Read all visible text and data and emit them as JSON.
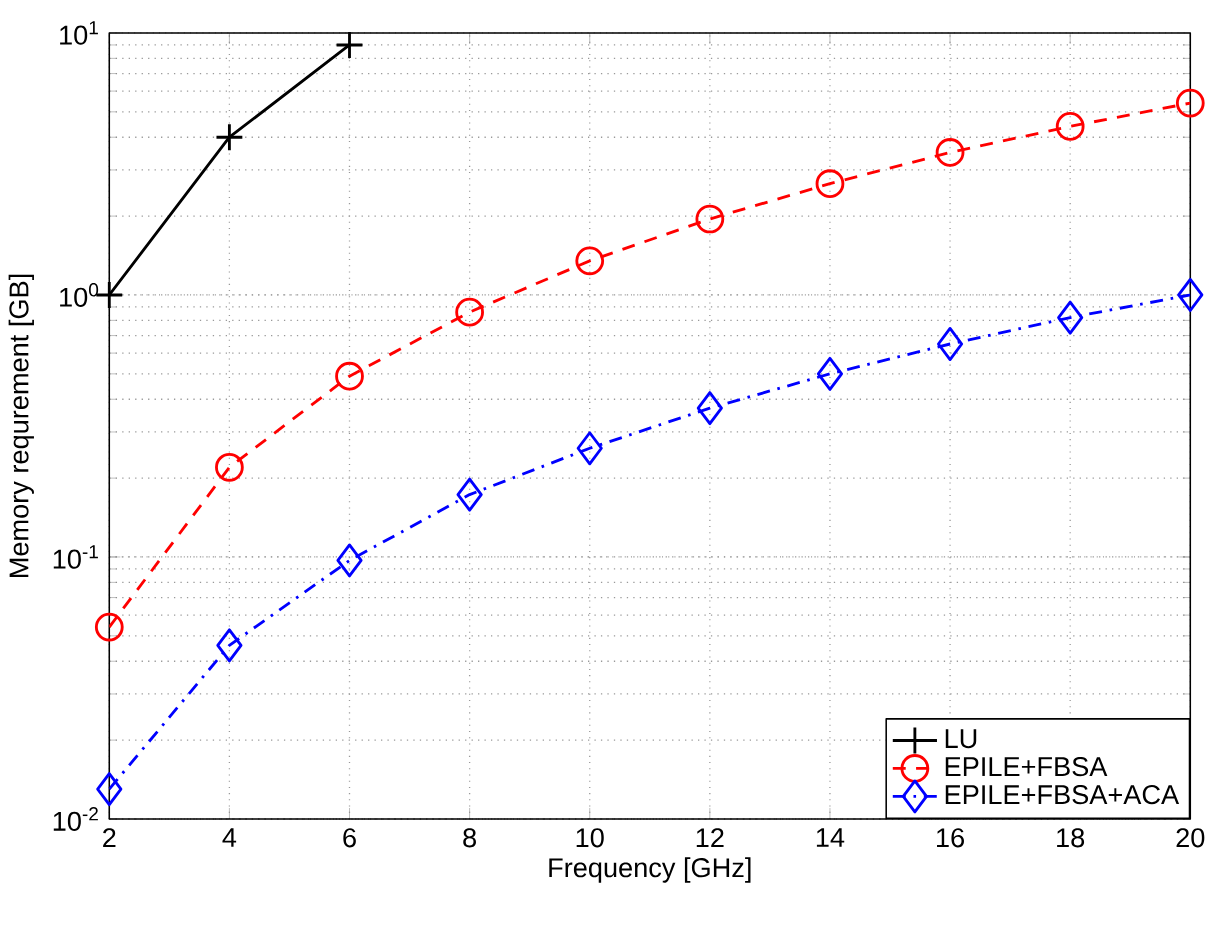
{
  "chart_data": {
    "type": "line",
    "xlabel": "Frequency [GHz]",
    "ylabel": "Memory requrement [GB]",
    "log": "y",
    "grid": true,
    "legend": "bottom right",
    "xlim": [
      2,
      20
    ],
    "xticks": [
      2,
      4,
      6,
      8,
      10,
      12,
      14,
      16,
      18,
      20
    ],
    "ylim": [
      0.01,
      10
    ],
    "yticks": [
      {
        "value": 0.01,
        "label": "10$^{-2}$"
      },
      {
        "value": 0.1,
        "label": "10$^{-1}$"
      },
      {
        "value": 1,
        "label": "10$^{0}$"
      },
      {
        "value": 10,
        "label": "10$^{1}$"
      }
    ],
    "series": [
      {
        "name": "LU",
        "color": "#000000",
        "marker": "cross",
        "line_style": "solid",
        "x": [
          2,
          4,
          6
        ],
        "values": [
          1.0,
          4.0,
          9.0
        ]
      },
      {
        "name": "EPILE+FBSA",
        "color": "#ff0000",
        "marker": "circle",
        "line_style": "dashed",
        "x": [
          2,
          4,
          6,
          8,
          10,
          12,
          14,
          16,
          18,
          20
        ],
        "values": [
          0.054,
          0.22,
          0.49,
          0.86,
          1.35,
          1.95,
          2.66,
          3.5,
          4.4,
          5.4
        ]
      },
      {
        "name": "EPILE+FBSA+ACA",
        "color": "#0000ff",
        "marker": "diamond",
        "line_style": "dashdot",
        "x": [
          2,
          4,
          6,
          8,
          10,
          12,
          14,
          16,
          18,
          20
        ],
        "values": [
          0.013,
          0.046,
          0.097,
          0.173,
          0.26,
          0.37,
          0.5,
          0.65,
          0.82,
          1.0
        ]
      }
    ]
  }
}
